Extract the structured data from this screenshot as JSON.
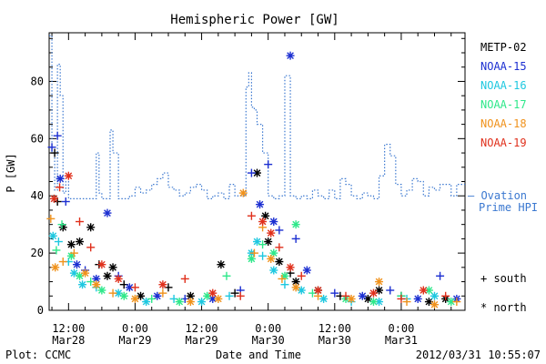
{
  "chart_data": {
    "type": "scatter",
    "title": "Hemispheric Power [GW]",
    "ylabel": "P [GW]",
    "xlabel": "Date and Time",
    "footer_left": "Plot: CCMC",
    "footer_right": "2012/03/31  10:55:07",
    "ylim": [
      0,
      97
    ],
    "xlim_hours": [
      -3.5,
      71.5
    ],
    "yticks": [
      0,
      20,
      40,
      60,
      80
    ],
    "xticks": [
      {
        "top": "12:00",
        "bottom": "Mar28"
      },
      {
        "top": "0:00",
        "bottom": "Mar29"
      },
      {
        "top": "12:00",
        "bottom": "Mar29"
      },
      {
        "top": "0:00",
        "bottom": "Mar30"
      },
      {
        "top": "12:00",
        "bottom": "Mar30"
      },
      {
        "top": "0:00",
        "bottom": "Mar31"
      }
    ],
    "series": [
      {
        "name": "METP-02",
        "color": "#000000",
        "points": [
          [
            -2.5,
            55,
            "s"
          ],
          [
            -2,
            38,
            "s"
          ],
          [
            -1,
            29,
            "n"
          ],
          [
            0.5,
            23,
            "n"
          ],
          [
            2,
            24,
            "n"
          ],
          [
            4,
            29,
            "n"
          ],
          [
            5.5,
            16,
            "s"
          ],
          [
            7,
            12,
            "n"
          ],
          [
            8,
            15,
            "n"
          ],
          [
            10,
            9,
            "s"
          ],
          [
            13,
            5,
            "n"
          ],
          [
            18,
            8,
            "s"
          ],
          [
            22,
            5,
            "n"
          ],
          [
            27.5,
            16,
            "n"
          ],
          [
            30,
            6,
            "s"
          ],
          [
            34,
            48,
            "n"
          ],
          [
            35.5,
            33,
            "n"
          ],
          [
            36,
            24,
            "n"
          ],
          [
            38,
            17,
            "n"
          ],
          [
            40,
            13,
            "s"
          ],
          [
            41,
            10,
            "n"
          ],
          [
            45,
            7,
            "n"
          ],
          [
            49,
            5,
            "s"
          ],
          [
            54,
            4,
            "n"
          ],
          [
            56,
            7,
            "n"
          ],
          [
            60,
            5,
            "s"
          ],
          [
            65,
            3,
            "n"
          ],
          [
            68,
            4,
            "n"
          ]
        ]
      },
      {
        "name": "NOAA-15",
        "color": "#1c2fd1",
        "points": [
          [
            -3,
            57,
            "s"
          ],
          [
            -2,
            61,
            "s"
          ],
          [
            -1.5,
            46,
            "n"
          ],
          [
            -0.5,
            38,
            "s"
          ],
          [
            1.5,
            16,
            "n"
          ],
          [
            3,
            14,
            "s"
          ],
          [
            5,
            11,
            "n"
          ],
          [
            7,
            34,
            "n"
          ],
          [
            9,
            12,
            "s"
          ],
          [
            11,
            8,
            "n"
          ],
          [
            16,
            5,
            "n"
          ],
          [
            21,
            4,
            "s"
          ],
          [
            26,
            4,
            "n"
          ],
          [
            31,
            7,
            "s"
          ],
          [
            33,
            48,
            "s"
          ],
          [
            34.5,
            37,
            "n"
          ],
          [
            36,
            51,
            "s"
          ],
          [
            37,
            31,
            "n"
          ],
          [
            38,
            28,
            "s"
          ],
          [
            40,
            89,
            "n"
          ],
          [
            41,
            25,
            "s"
          ],
          [
            43,
            14,
            "n"
          ],
          [
            48,
            6,
            "s"
          ],
          [
            53,
            5,
            "n"
          ],
          [
            58,
            7,
            "s"
          ],
          [
            63,
            4,
            "n"
          ],
          [
            67,
            12,
            "s"
          ],
          [
            70,
            4,
            "n"
          ]
        ]
      },
      {
        "name": "NOAA-16",
        "color": "#1ec8e0",
        "points": [
          [
            -2.8,
            26,
            "n"
          ],
          [
            -1.8,
            24,
            "s"
          ],
          [
            0,
            17,
            "s"
          ],
          [
            1,
            13,
            "n"
          ],
          [
            2.5,
            9,
            "n"
          ],
          [
            5,
            8,
            "s"
          ],
          [
            9,
            6,
            "n"
          ],
          [
            14,
            3,
            "n"
          ],
          [
            19,
            4,
            "s"
          ],
          [
            24,
            3,
            "n"
          ],
          [
            29,
            5,
            "s"
          ],
          [
            33,
            20,
            "n"
          ],
          [
            34,
            24,
            "n"
          ],
          [
            35,
            19,
            "s"
          ],
          [
            37,
            14,
            "n"
          ],
          [
            39,
            9,
            "s"
          ],
          [
            42,
            7,
            "n"
          ],
          [
            46,
            4,
            "n"
          ],
          [
            51,
            3,
            "s"
          ],
          [
            56,
            3,
            "n"
          ],
          [
            61,
            4,
            "s"
          ],
          [
            66,
            5,
            "n"
          ]
        ]
      },
      {
        "name": "NOAA-17",
        "color": "#2ee88a",
        "points": [
          [
            -2.2,
            21,
            "s"
          ],
          [
            -1.2,
            30,
            "s"
          ],
          [
            0.5,
            19,
            "n"
          ],
          [
            2,
            12,
            "n"
          ],
          [
            4,
            10,
            "s"
          ],
          [
            6,
            7,
            "n"
          ],
          [
            10,
            5,
            "n"
          ],
          [
            15,
            4,
            "s"
          ],
          [
            20,
            3,
            "n"
          ],
          [
            25,
            5,
            "n"
          ],
          [
            28.5,
            12,
            "s"
          ],
          [
            33,
            18,
            "n"
          ],
          [
            35,
            23,
            "s"
          ],
          [
            37,
            20,
            "n"
          ],
          [
            39,
            12,
            "n"
          ],
          [
            41,
            30,
            "n"
          ],
          [
            44,
            6,
            "s"
          ],
          [
            50,
            4,
            "n"
          ],
          [
            55,
            3,
            "n"
          ],
          [
            60,
            5,
            "s"
          ],
          [
            65,
            7,
            "n"
          ],
          [
            69,
            3,
            "n"
          ]
        ]
      },
      {
        "name": "NOAA-18",
        "color": "#f0921c",
        "points": [
          [
            -3.2,
            32,
            "s"
          ],
          [
            -2.4,
            15,
            "n"
          ],
          [
            -1,
            17,
            "s"
          ],
          [
            1,
            20,
            "s"
          ],
          [
            3,
            13,
            "n"
          ],
          [
            5,
            9,
            "n"
          ],
          [
            8,
            6,
            "s"
          ],
          [
            12,
            4,
            "n"
          ],
          [
            17,
            6,
            "s"
          ],
          [
            22,
            3,
            "n"
          ],
          [
            27,
            4,
            "n"
          ],
          [
            31.5,
            41,
            "n"
          ],
          [
            33.5,
            20,
            "s"
          ],
          [
            35,
            29,
            "s"
          ],
          [
            36.5,
            18,
            "n"
          ],
          [
            38.5,
            11,
            "s"
          ],
          [
            41,
            8,
            "n"
          ],
          [
            45,
            5,
            "s"
          ],
          [
            51,
            4,
            "n"
          ],
          [
            56,
            10,
            "n"
          ],
          [
            61,
            3,
            "s"
          ],
          [
            66,
            2,
            "n"
          ],
          [
            70,
            3,
            "s"
          ]
        ]
      },
      {
        "name": "NOAA-19",
        "color": "#e0301c",
        "points": [
          [
            -2.6,
            39,
            "n"
          ],
          [
            -1.6,
            43,
            "s"
          ],
          [
            0,
            47,
            "n"
          ],
          [
            2,
            31,
            "s"
          ],
          [
            4,
            22,
            "s"
          ],
          [
            6,
            16,
            "n"
          ],
          [
            9,
            11,
            "n"
          ],
          [
            12,
            8,
            "s"
          ],
          [
            17,
            9,
            "n"
          ],
          [
            21,
            11,
            "s"
          ],
          [
            26,
            6,
            "n"
          ],
          [
            31,
            5,
            "s"
          ],
          [
            33,
            33,
            "s"
          ],
          [
            35,
            31,
            "n"
          ],
          [
            36.5,
            27,
            "n"
          ],
          [
            38,
            22,
            "s"
          ],
          [
            40,
            15,
            "n"
          ],
          [
            42,
            12,
            "s"
          ],
          [
            45,
            7,
            "n"
          ],
          [
            50,
            5,
            "s"
          ],
          [
            55,
            6,
            "n"
          ],
          [
            60,
            4,
            "s"
          ],
          [
            64,
            7,
            "n"
          ],
          [
            68,
            5,
            "s"
          ]
        ]
      }
    ],
    "ovation": {
      "name": "Ovation Prime HPI",
      "legend_lines": [
        "— Ovation",
        "Prime HPI"
      ],
      "color": "#3b78d0",
      "x": [
        -3.5,
        -3,
        -2.5,
        -2,
        -1.5,
        -1,
        -0.5,
        0,
        1,
        2,
        3,
        4,
        5,
        5.5,
        6,
        7,
        7.5,
        8,
        9,
        10,
        11,
        12,
        13,
        14,
        15,
        16,
        17,
        18,
        19,
        20,
        21,
        22,
        23,
        24,
        25,
        26,
        27,
        28,
        28.5,
        29,
        30,
        31,
        32,
        32.5,
        33,
        33.5,
        34,
        35,
        36,
        37,
        38,
        39,
        40,
        41,
        42,
        43,
        44,
        45,
        46,
        47,
        48,
        49,
        50,
        51,
        52,
        53,
        54,
        55,
        56,
        57,
        58,
        59,
        60,
        61,
        62,
        63,
        64,
        65,
        66,
        67,
        68,
        69,
        70,
        71.5
      ],
      "y": [
        96,
        55,
        42,
        86,
        75,
        41,
        45,
        39,
        39,
        39,
        39,
        39,
        55,
        41,
        39,
        39,
        63,
        55,
        39,
        39,
        40,
        43,
        41,
        42,
        44,
        46,
        48,
        43,
        42,
        40,
        41,
        43,
        44,
        42,
        39,
        40,
        41,
        39,
        39,
        44,
        40,
        40,
        78,
        83,
        71,
        70,
        65,
        55,
        40,
        39,
        40,
        82,
        40,
        39,
        40,
        39,
        42,
        40,
        39,
        42,
        39,
        46,
        44,
        40,
        39,
        41,
        40,
        39,
        47,
        58,
        54,
        44,
        40,
        42,
        46,
        45,
        40,
        43,
        42,
        44,
        44,
        40,
        44,
        44
      ]
    },
    "legend_positions": [
      "top-right"
    ],
    "marker_legend": [
      {
        "symbol": "+",
        "label": "south"
      },
      {
        "symbol": "*",
        "label": "north"
      }
    ]
  }
}
